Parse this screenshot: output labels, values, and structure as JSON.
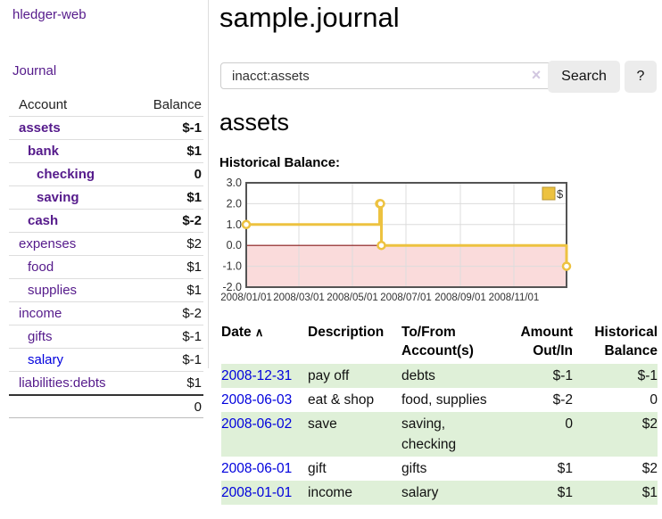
{
  "app": {
    "brand": "hledger-web",
    "nav_journal": "Journal"
  },
  "sidebar": {
    "accounts_header": {
      "account": "Account",
      "balance": "Balance"
    },
    "accounts": [
      {
        "name": "assets",
        "indent": 0,
        "bold": true,
        "name_color": "purple",
        "balance": "$-1",
        "balance_color": "neg-strong"
      },
      {
        "name": "bank",
        "indent": 1,
        "bold": true,
        "name_color": "purple",
        "balance": "$1",
        "balance_color": ""
      },
      {
        "name": "checking",
        "indent": 2,
        "bold": true,
        "name_color": "purple",
        "balance": "0",
        "balance_color": ""
      },
      {
        "name": "saving",
        "indent": 2,
        "bold": true,
        "name_color": "purple",
        "balance": "$1",
        "balance_color": ""
      },
      {
        "name": "cash",
        "indent": 1,
        "bold": true,
        "name_color": "purple",
        "balance": "$-2",
        "balance_color": "neg-strong"
      },
      {
        "name": "expenses",
        "indent": 0,
        "bold": false,
        "name_color": "purple",
        "balance": "$2",
        "balance_color": ""
      },
      {
        "name": "food",
        "indent": 1,
        "bold": false,
        "name_color": "purple",
        "balance": "$1",
        "balance_color": ""
      },
      {
        "name": "supplies",
        "indent": 1,
        "bold": false,
        "name_color": "purple",
        "balance": "$1",
        "balance_color": ""
      },
      {
        "name": "income",
        "indent": 0,
        "bold": false,
        "name_color": "purple",
        "balance": "$-2",
        "balance_color": "neg-soft"
      },
      {
        "name": "gifts",
        "indent": 1,
        "bold": false,
        "name_color": "purple",
        "balance": "$-1",
        "balance_color": "neg-soft"
      },
      {
        "name": "salary",
        "indent": 1,
        "bold": false,
        "name_color": "blue",
        "balance": "$-1",
        "balance_color": "neg-soft"
      },
      {
        "name": "liabilities:debts",
        "indent": 0,
        "bold": false,
        "name_color": "purple",
        "balance": "$1",
        "balance_color": ""
      }
    ],
    "total": "0"
  },
  "main": {
    "title": "sample.journal",
    "search": {
      "value": "inacct:assets",
      "clear_icon": "×",
      "button_label": "Search",
      "help_label": "?"
    },
    "account_heading": "assets",
    "chart_label": "Historical Balance:"
  },
  "chart_data": {
    "type": "line",
    "title": "Historical Balance",
    "step": true,
    "series": [
      {
        "name": "$",
        "color": "#edc240",
        "points": [
          [
            "2008-01-01",
            1
          ],
          [
            "2008-06-01",
            2
          ],
          [
            "2008-06-02",
            2
          ],
          [
            "2008-06-03",
            0
          ],
          [
            "2008-12-31",
            -1
          ]
        ]
      }
    ],
    "x_range": [
      "2008-01-01",
      "2008-12-31"
    ],
    "ylim": [
      -2,
      3
    ],
    "y_ticks": [
      3.0,
      2.0,
      1.0,
      0.0,
      -1.0,
      -2.0
    ],
    "x_ticks": [
      "2008/01/01",
      "2008/03/01",
      "2008/05/01",
      "2008/07/01",
      "2008/09/01",
      "2008/11/01"
    ],
    "grid": true,
    "legend": {
      "label": "$",
      "position": "top-right"
    },
    "zero_line_color": "#8b1a1a",
    "negative_region_color": "#fadbdb",
    "line_color": "#edc240",
    "border_color": "#545454"
  },
  "register_table": {
    "sort_icon": "∧",
    "columns": [
      "Date",
      "Description",
      "To/From Account(s)",
      "Amount Out/In",
      "Historical Balance"
    ],
    "rows": [
      {
        "date": "2008-12-31",
        "description": "pay off",
        "accounts": "debts",
        "amount": "$-1",
        "amount_neg": true,
        "balance": "$-1",
        "balance_neg": true
      },
      {
        "date": "2008-06-03",
        "description": "eat & shop",
        "accounts": "food, supplies",
        "amount": "$-2",
        "amount_neg": true,
        "balance": "0",
        "balance_neg": false
      },
      {
        "date": "2008-06-02",
        "description": "save",
        "accounts": "saving, checking",
        "amount": "0",
        "amount_neg": false,
        "balance": "$2",
        "balance_neg": false
      },
      {
        "date": "2008-06-01",
        "description": "gift",
        "accounts": "gifts",
        "amount": "$1",
        "amount_neg": false,
        "balance": "$2",
        "balance_neg": false
      },
      {
        "date": "2008-01-01",
        "description": "income",
        "accounts": "salary",
        "amount": "$1",
        "amount_neg": false,
        "balance": "$1",
        "balance_neg": false
      }
    ]
  }
}
